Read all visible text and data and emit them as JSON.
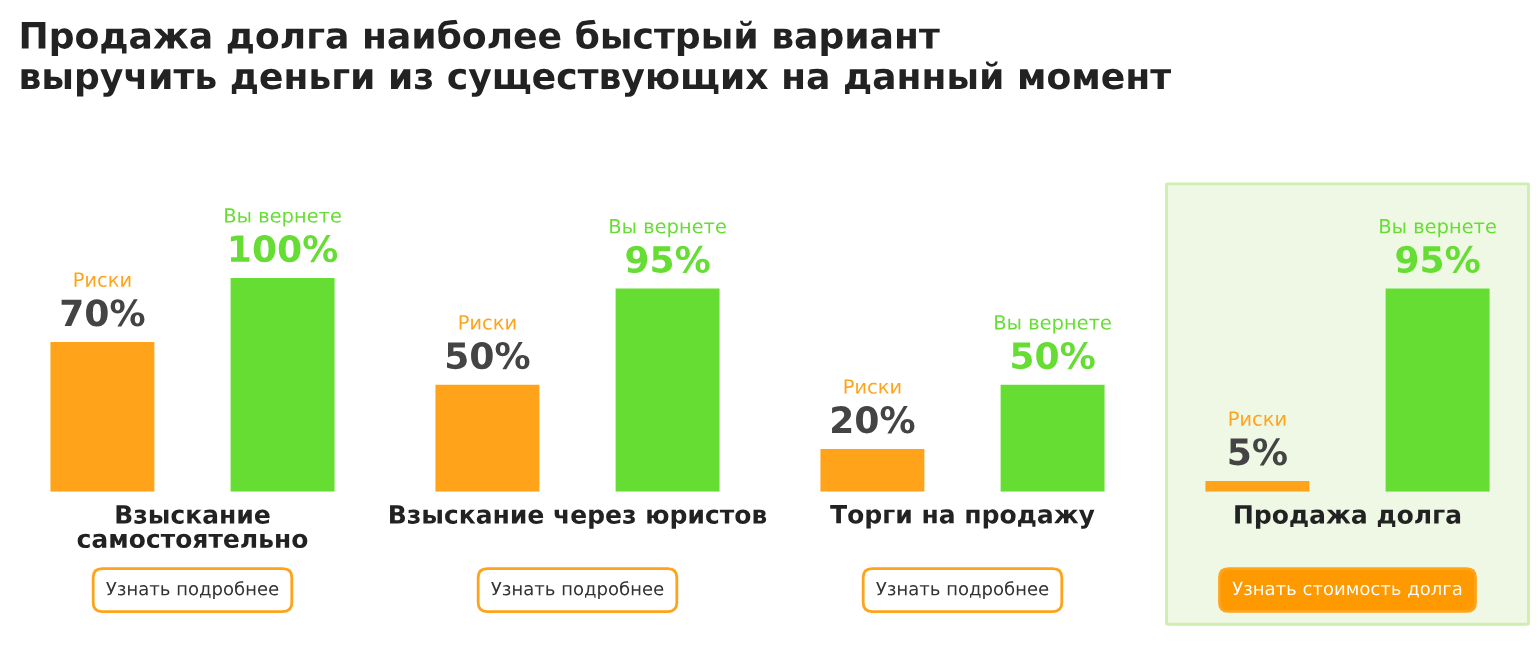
{
  "chart_data": {
    "type": "bar",
    "title": "Продажа долга наиболее быстрый вариант\nвыручить деньги из существующих на данный момент",
    "categories": [
      "Взыскание\nсамостоятельно",
      "Взыскание через юристов",
      "Торги на продажу",
      "Продажа долга"
    ],
    "series": [
      {
        "name": "Риски",
        "color": "#ffa31a",
        "values": [
          70,
          50,
          20,
          5
        ],
        "value_labels": [
          "70%",
          "50%",
          "20%",
          "5%"
        ]
      },
      {
        "name": "Вы вернете",
        "color": "#66dd33",
        "values": [
          100,
          95,
          50,
          95
        ],
        "value_labels": [
          "100%",
          "95%",
          "50%",
          "95%"
        ]
      }
    ],
    "annotations": [
      "Узнать подробнее",
      "Узнать подробнее",
      "Узнать подробнее",
      "Узнать стоимость долга"
    ],
    "legend": false
  }
}
